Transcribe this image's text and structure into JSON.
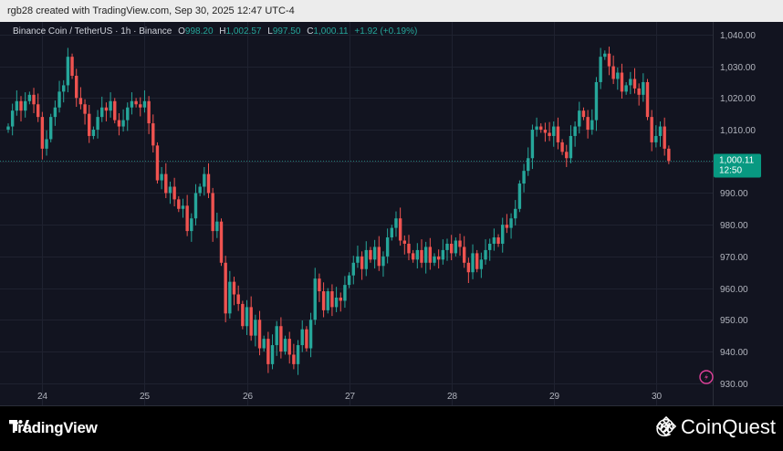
{
  "header": {
    "caption": "rgb28 created with TradingView.com, Sep 30, 2025 12:47 UTC-4"
  },
  "legend": {
    "symbol": "Binance Coin / TetherUS · 1h · Binance",
    "o_label": "O",
    "o_value": "998.20",
    "h_label": "H",
    "h_value": "1,002.57",
    "l_label": "L",
    "l_value": "997.50",
    "c_label": "C",
    "c_value": "1,000.11",
    "change": "+1.92 (+0.19%)"
  },
  "price_tag": {
    "price": "1,000.11",
    "countdown": "12:50"
  },
  "footer": {
    "left_brand": "TradingView",
    "right_brand": "@ CoinQuest"
  },
  "colors": {
    "up": "#26a69a",
    "down": "#ef5350",
    "bg": "#121420",
    "grid": "#1f2230",
    "axis_text": "#b2b5be"
  },
  "icons": {
    "tv": "tradingview-logo-icon",
    "binance": "binance-diamond-icon",
    "flash": "lightning-icon"
  },
  "chart_data": {
    "type": "candlestick",
    "symbol": "BNBUSDT",
    "interval": "1h",
    "y_ticks": [
      930,
      940,
      950,
      960,
      970,
      980,
      990,
      1000,
      1010,
      1020,
      1030,
      1040
    ],
    "y_tick_labels": [
      "930.00",
      "940.00",
      "950.00",
      "960.00",
      "970.00",
      "980.00",
      "990.00",
      "1,000.00",
      "1,010.00",
      "1,020.00",
      "1,030.00",
      "1,040.00"
    ],
    "ylim": [
      923,
      1044
    ],
    "x_ticks": [
      {
        "label": "24",
        "index": 8
      },
      {
        "label": "25",
        "index": 32
      },
      {
        "label": "26",
        "index": 56
      },
      {
        "label": "27",
        "index": 80
      },
      {
        "label": "28",
        "index": 104
      },
      {
        "label": "29",
        "index": 128
      },
      {
        "label": "30",
        "index": 152
      }
    ],
    "last_price": 1000.11,
    "grid": true,
    "closes": [
      1011,
      1016,
      1019,
      1016,
      1019,
      1021,
      1018,
      1014,
      1004,
      1007,
      1014,
      1017,
      1022,
      1024,
      1033,
      1027,
      1020,
      1018,
      1015,
      1008,
      1010,
      1014,
      1017,
      1016,
      1019,
      1013,
      1011,
      1013,
      1017,
      1019,
      1018,
      1017,
      1019,
      1012,
      1005,
      994,
      996,
      990,
      992,
      988,
      985,
      986,
      978,
      982,
      990,
      992,
      996,
      990,
      978,
      981,
      968,
      952,
      962,
      958,
      955,
      948,
      954,
      945,
      950,
      941,
      944,
      936,
      942,
      948,
      940,
      944,
      939,
      936,
      942,
      947,
      941,
      950,
      963,
      959,
      953,
      959,
      954,
      957,
      956,
      961,
      964,
      968,
      970,
      966,
      972,
      969,
      973,
      967,
      970,
      976,
      979,
      982,
      975,
      974,
      971,
      969,
      972,
      968,
      973,
      968,
      970,
      969,
      972,
      974,
      971,
      975,
      973,
      968,
      965,
      971,
      966,
      969,
      972,
      974,
      976,
      974,
      980,
      979,
      982,
      985,
      993,
      997,
      1001,
      1010,
      1011,
      1010,
      1009,
      1008,
      1011,
      1006,
      1003,
      1001,
      1008,
      1011,
      1016,
      1014,
      1010,
      1013,
      1025,
      1033,
      1034,
      1030,
      1026,
      1028,
      1022,
      1024,
      1026,
      1023,
      1021,
      1025,
      1014,
      1006,
      1008,
      1011,
      1004,
      1000.11
    ]
  }
}
